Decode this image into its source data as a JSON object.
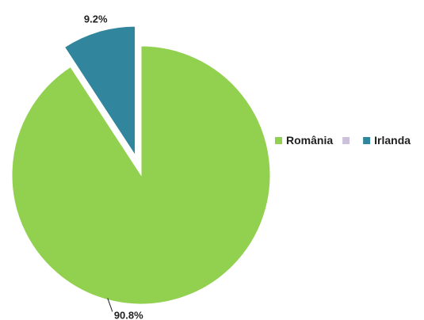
{
  "chart_data": {
    "type": "pie",
    "title": "",
    "slices": [
      {
        "label": "România",
        "value": 90.8,
        "display": "90.8%",
        "color": "#92d050"
      },
      {
        "label": "Irlanda",
        "value": 9.2,
        "display": "9.2%",
        "color": "#31859c"
      }
    ],
    "legend": {
      "placement": "right",
      "entries": [
        {
          "name": "România",
          "color": "#92d050"
        },
        {
          "name": "",
          "color": "#ccc0da"
        },
        {
          "name": "Irlanda",
          "color": "#31859c"
        }
      ]
    },
    "exploded": [
      "Irlanda"
    ]
  }
}
